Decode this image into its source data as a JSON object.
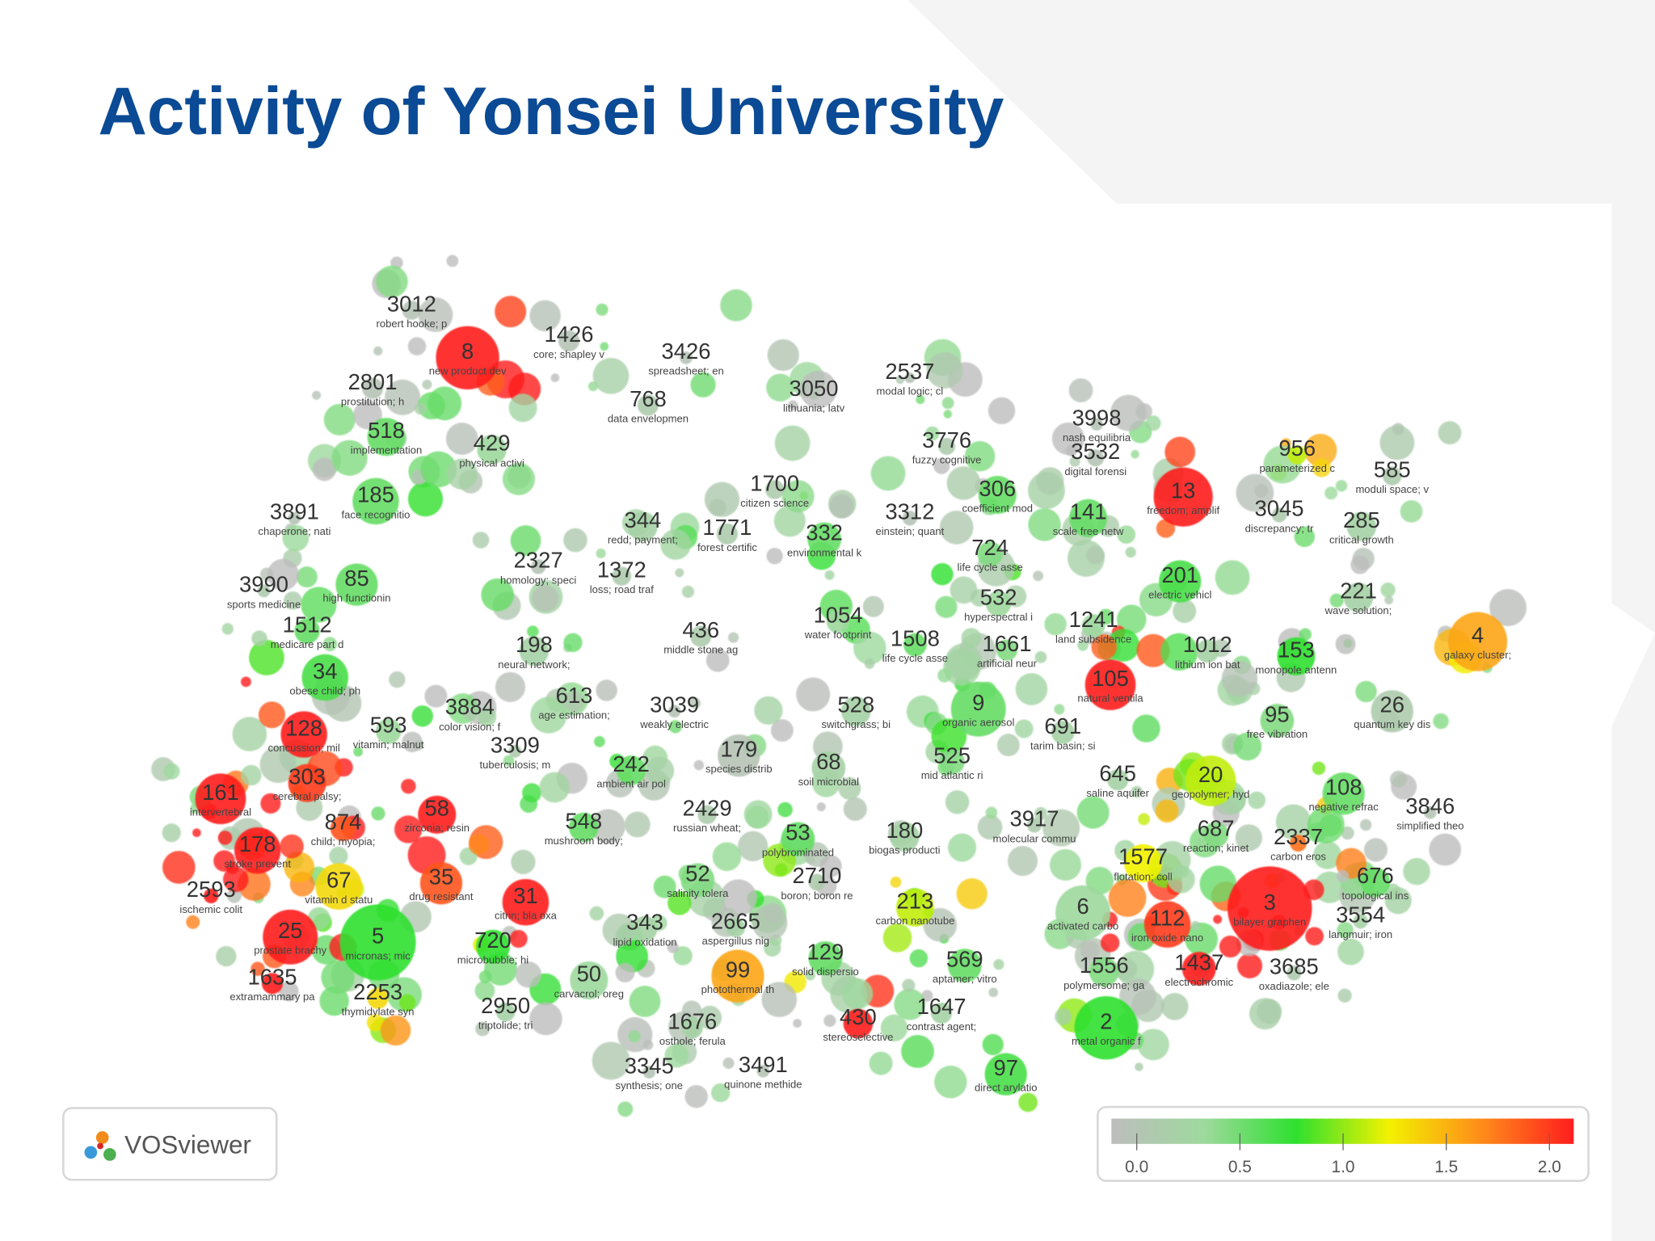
{
  "title": "Activity of Yonsei University",
  "logo": "VOSviewer",
  "colorbar": {
    "ticks": [
      {
        "value": 0,
        "label": "0.0"
      },
      {
        "value": 0.5,
        "label": "0.5"
      },
      {
        "value": 1,
        "label": "1.0"
      },
      {
        "value": 1.5,
        "label": "1.5"
      },
      {
        "value": 2,
        "label": "2.0"
      }
    ],
    "colors": [
      "#bdbdbd",
      "#9ed99e",
      "#2ee02e",
      "#f2f200",
      "#ff8c1a",
      "#ff1e1e"
    ]
  },
  "nodes": [
    {
      "id": 3012,
      "label": "robert hooke; p",
      "score": 0.1
    },
    {
      "id": 8,
      "label": "new product dev",
      "score": 2.0
    },
    {
      "id": 1426,
      "label": "core; shapley v",
      "score": 0.1
    },
    {
      "id": 3426,
      "label": "spreadsheet; en",
      "score": 0.1
    },
    {
      "id": 2801,
      "label": "prostitution; h",
      "score": 0.1
    },
    {
      "id": 768,
      "label": "data envelopmen",
      "score": 0.2
    },
    {
      "id": 3050,
      "label": "lithuania; latv",
      "score": 0.1
    },
    {
      "id": 2537,
      "label": "modal logic; cl",
      "score": 0.1
    },
    {
      "id": 518,
      "label": "implementation",
      "score": 0.6
    },
    {
      "id": 429,
      "label": "physical activi",
      "score": 0.4
    },
    {
      "id": 3998,
      "label": "nash equilibria",
      "score": 0.1
    },
    {
      "id": 3532,
      "label": "digital forensi",
      "score": 0.1
    },
    {
      "id": 3776,
      "label": "fuzzy cognitive",
      "score": 0.2
    },
    {
      "id": 956,
      "label": "parameterized c",
      "score": 1.1
    },
    {
      "id": 585,
      "label": "moduli space; v",
      "score": 0.2
    },
    {
      "id": 185,
      "label": "face recognitio",
      "score": 0.6
    },
    {
      "id": 1700,
      "label": "citizen science",
      "score": 0.2
    },
    {
      "id": 306,
      "label": "coefficient mod",
      "score": 0.6
    },
    {
      "id": 13,
      "label": "freedom; amplif",
      "score": 2.0
    },
    {
      "id": 141,
      "label": "scale free netw",
      "score": 0.6
    },
    {
      "id": 3891,
      "label": "chaperone; nati",
      "score": 0.1
    },
    {
      "id": 344,
      "label": "redd; payment;",
      "score": 0.3
    },
    {
      "id": 1771,
      "label": "forest certific",
      "score": 0.2
    },
    {
      "id": 332,
      "label": "environmental k",
      "score": 0.6
    },
    {
      "id": 3312,
      "label": "einstein; quant",
      "score": 0.1
    },
    {
      "id": 3045,
      "label": "discrepancy; tr",
      "score": 0.2
    },
    {
      "id": 285,
      "label": "critical growth",
      "score": 0.3
    },
    {
      "id": 724,
      "label": "life cycle asse",
      "score": 0.5
    },
    {
      "id": 2327,
      "label": "homology; speci",
      "score": 0.1
    },
    {
      "id": 1372,
      "label": "loss; road traf",
      "score": 0.2
    },
    {
      "id": 85,
      "label": "high functionin",
      "score": 0.6
    },
    {
      "id": 3990,
      "label": "sports medicine",
      "score": 0.2
    },
    {
      "id": 201,
      "label": "electric vehicl",
      "score": 0.7
    },
    {
      "id": 532,
      "label": "hyperspectral i",
      "score": 0.4
    },
    {
      "id": 221,
      "label": "wave solution;",
      "score": 0.3
    },
    {
      "id": 1054,
      "label": "water footprint",
      "score": 0.4
    },
    {
      "id": 1512,
      "label": "medicare part d",
      "score": 0.6
    },
    {
      "id": 1241,
      "label": "land subsidence",
      "score": 0.4
    },
    {
      "id": 436,
      "label": "middle stone ag",
      "score": 0.2
    },
    {
      "id": 1508,
      "label": "life cycle asse",
      "score": 0.6
    },
    {
      "id": 1661,
      "label": "artificial neur",
      "score": 0.5
    },
    {
      "id": 198,
      "label": "neural network;",
      "score": 0.3
    },
    {
      "id": 1012,
      "label": "lithium ion bat",
      "score": 0.3
    },
    {
      "id": 153,
      "label": "monopole antenn",
      "score": 0.8
    },
    {
      "id": 4,
      "label": "galaxy cluster;",
      "score": 1.5
    },
    {
      "id": 34,
      "label": "obese child; ph",
      "score": 0.7
    },
    {
      "id": 105,
      "label": "natural ventila",
      "score": 2.0
    },
    {
      "id": 613,
      "label": "age estimation;",
      "score": 0.2
    },
    {
      "id": 3039,
      "label": "weakly electric",
      "score": 0.1
    },
    {
      "id": 528,
      "label": "switchgrass; bi",
      "score": 0.3
    },
    {
      "id": 9,
      "label": "organic aerosol",
      "score": 0.6
    },
    {
      "id": 26,
      "label": "quantum key dis",
      "score": 0.2
    },
    {
      "id": 3884,
      "label": "color vision; f",
      "score": 0.2
    },
    {
      "id": 128,
      "label": "concussion; mil",
      "score": 2.0
    },
    {
      "id": 593,
      "label": "vitamin; malnut",
      "score": 0.4
    },
    {
      "id": 691,
      "label": "tarim basin; si",
      "score": 0.3
    },
    {
      "id": 95,
      "label": "free vibration",
      "score": 0.5
    },
    {
      "id": 3309,
      "label": "tuberculosis; m",
      "score": 0.2
    },
    {
      "id": 179,
      "label": "species distrib",
      "score": 0.1
    },
    {
      "id": 68,
      "label": "soil microbial",
      "score": 0.3
    },
    {
      "id": 525,
      "label": "mid atlantic ri",
      "score": 0.5
    },
    {
      "id": 242,
      "label": "ambient air pol",
      "score": 0.6
    },
    {
      "id": 303,
      "label": "cerebral palsy;",
      "score": 1.9
    },
    {
      "id": 645,
      "label": "saline aquifer",
      "score": 0.3
    },
    {
      "id": 20,
      "label": "geopolymer; hyd",
      "score": 1.1
    },
    {
      "id": 108,
      "label": "negative refrac",
      "score": 0.6
    },
    {
      "id": 161,
      "label": "intervertebral",
      "score": 2.0
    },
    {
      "id": 3846,
      "label": "simplified theo",
      "score": 0.1
    },
    {
      "id": 58,
      "label": "zirconia; resin",
      "score": 2.0
    },
    {
      "id": 874,
      "label": "child; myopia;",
      "score": 1.8
    },
    {
      "id": 2429,
      "label": "russian wheat;",
      "score": 0.2
    },
    {
      "id": 548,
      "label": "mushroom body;",
      "score": 0.6
    },
    {
      "id": 3917,
      "label": "molecular commu",
      "score": 0.2
    },
    {
      "id": 53,
      "label": "polybrominated",
      "score": 0.6
    },
    {
      "id": 180,
      "label": "biogas producti",
      "score": 0.3
    },
    {
      "id": 687,
      "label": "reaction; kinet",
      "score": 0.5
    },
    {
      "id": 2337,
      "label": "carbon eros",
      "score": 1.7
    },
    {
      "id": 178,
      "label": "stroke prevent",
      "score": 2.0
    },
    {
      "id": 1577,
      "label": "flotation; coll",
      "score": 1.2
    },
    {
      "id": 676,
      "label": "topological ins",
      "score": 0.6
    },
    {
      "id": 67,
      "label": "vitamin d statu",
      "score": 1.3
    },
    {
      "id": 35,
      "label": "drug resistant",
      "score": 1.8
    },
    {
      "id": 2593,
      "label": "ischemic colit",
      "score": 2.0
    },
    {
      "id": 52,
      "label": "salinity tolera",
      "score": 0.5
    },
    {
      "id": 2710,
      "label": "boron; boron re",
      "score": 0.2
    },
    {
      "id": 31,
      "label": "citrin; bla oxa",
      "score": 2.0
    },
    {
      "id": 213,
      "label": "carbon nanotube",
      "score": 1.1
    },
    {
      "id": 6,
      "label": "activated carbo",
      "score": 0.4
    },
    {
      "id": 3,
      "label": "bilayer graphen",
      "score": 2.0
    },
    {
      "id": 3554,
      "label": "langmuir; iron",
      "score": 0.3
    },
    {
      "id": 112,
      "label": "iron oxide nano",
      "score": 1.9
    },
    {
      "id": 343,
      "label": "lipid oxidation",
      "score": 0.3
    },
    {
      "id": 2665,
      "label": "aspergillus nig",
      "score": 0.3
    },
    {
      "id": 25,
      "label": "prostate brachy",
      "score": 2.0
    },
    {
      "id": 5,
      "label": "micronas; mic",
      "score": 0.8
    },
    {
      "id": 720,
      "label": "microbubble; hi",
      "score": 0.8
    },
    {
      "id": 129,
      "label": "solid dispersio",
      "score": 0.6
    },
    {
      "id": 569,
      "label": "aptamer; vitro",
      "score": 0.6
    },
    {
      "id": 99,
      "label": "photothermal th",
      "score": 1.5
    },
    {
      "id": 1437,
      "label": "electrochromic",
      "score": 2.0
    },
    {
      "id": 1556,
      "label": "polymersome; ga",
      "score": 0.5
    },
    {
      "id": 3685,
      "label": "oxadiazole; ele",
      "score": 0.2
    },
    {
      "id": 1635,
      "label": "extramammary pa",
      "score": 2.0
    },
    {
      "id": 2253,
      "label": "thymidylate syn",
      "score": 1.3
    },
    {
      "id": 50,
      "label": "carvacrol; oreg",
      "score": 0.4
    },
    {
      "id": 2950,
      "label": "triptolide; tri",
      "score": 0.3
    },
    {
      "id": 1647,
      "label": "contrast agent;",
      "score": 0.3
    },
    {
      "id": 430,
      "label": "stereoselective",
      "score": 2.0
    },
    {
      "id": 1676,
      "label": "osthole; ferula",
      "score": 0.3
    },
    {
      "id": 2,
      "label": "metal organic f",
      "score": 0.8
    },
    {
      "id": 3345,
      "label": "synthesis; one",
      "score": 0.1
    },
    {
      "id": 3491,
      "label": "quinone methide",
      "score": 0.1
    },
    {
      "id": 97,
      "label": "direct arylatio",
      "score": 0.7
    }
  ]
}
